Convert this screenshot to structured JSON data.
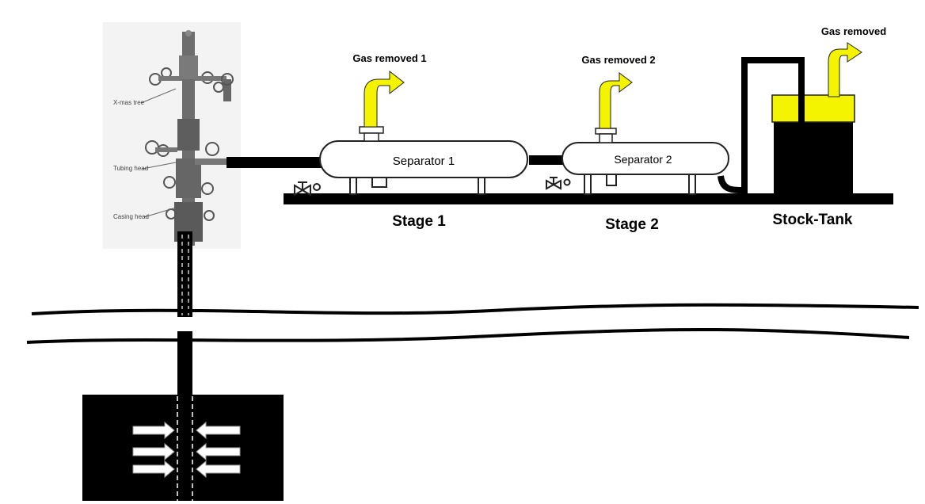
{
  "wellhead": {
    "labels": [
      "X-mas tree",
      "Tubing head",
      "Casing head"
    ]
  },
  "separators": [
    {
      "name": "Separator 1",
      "gas_label": "Gas removed 1",
      "stage_label": "Stage 1"
    },
    {
      "name": "Separator 2",
      "gas_label": "Gas removed 2",
      "stage_label": "Stage 2"
    }
  ],
  "stock_tank": {
    "label": "Stock-Tank",
    "gas_label": "Gas removed"
  },
  "colors": {
    "gas_arrow": "#f4f400",
    "pipe": "#000000",
    "vessel_fill": "#ffffff",
    "reservoir": "#000000"
  }
}
